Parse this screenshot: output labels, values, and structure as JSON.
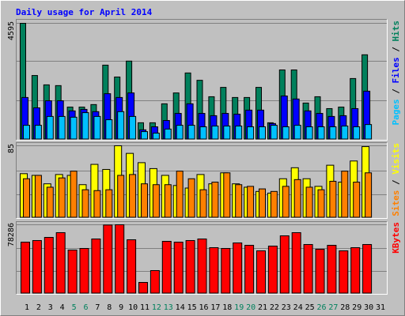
{
  "title": "Daily usage for April 2014",
  "chart_data": [
    {
      "type": "bar",
      "ylim": [
        0,
        4595
      ],
      "yticks": [
        4595
      ],
      "legend_separator": " / ",
      "series": [
        {
          "name": "Pages",
          "color": "#00c0ff",
          "values": [
            560,
            560,
            910,
            910,
            880,
            1060,
            910,
            780,
            1100,
            910,
            310,
            250,
            410,
            560,
            560,
            500,
            530,
            530,
            530,
            500,
            500,
            560,
            500,
            560,
            500,
            500,
            500,
            530,
            500,
            590,
            null
          ]
        },
        {
          "name": "Files",
          "color": "#0000ff",
          "values": [
            1660,
            1250,
            1530,
            1530,
            1130,
            1190,
            1100,
            1810,
            1660,
            1840,
            380,
            500,
            750,
            1030,
            1410,
            1030,
            940,
            1030,
            1000,
            1160,
            1160,
            630,
            1720,
            1600,
            1130,
            1030,
            910,
            940,
            1220,
            1910,
            null
          ]
        },
        {
          "name": "Hits",
          "color": "#00805c",
          "values": [
            4595,
            2530,
            2160,
            2130,
            1280,
            1280,
            1380,
            2940,
            2470,
            3100,
            660,
            660,
            1410,
            1840,
            2630,
            2340,
            1690,
            2060,
            1660,
            1660,
            2060,
            660,
            2750,
            2750,
            1440,
            1690,
            1220,
            1280,
            2410,
            3350,
            null
          ]
        }
      ]
    },
    {
      "type": "bar",
      "ylim": [
        0,
        85
      ],
      "yticks": [
        85
      ],
      "legend_separator": " / ",
      "series": [
        {
          "name": "Sites",
          "color": "#ff8000",
          "values": [
            46,
            50,
            36,
            47,
            55,
            33,
            32,
            33,
            50,
            51,
            40,
            39,
            39,
            55,
            46,
            33,
            42,
            53,
            39,
            37,
            34,
            31,
            37,
            45,
            36,
            33,
            43,
            55,
            42,
            53,
            null
          ]
        },
        {
          "name": "Visits",
          "color": "#ffff00",
          "values": [
            52,
            50,
            40,
            51,
            50,
            39,
            63,
            57,
            85,
            76,
            65,
            58,
            50,
            38,
            35,
            51,
            40,
            53,
            40,
            36,
            31,
            29,
            46,
            59,
            46,
            37,
            62,
            42,
            67,
            84,
            null
          ]
        }
      ]
    },
    {
      "type": "bar",
      "ylim": [
        0,
        78286
      ],
      "yticks": [
        78286
      ],
      "legend_separator": " / ",
      "categories": [
        "1",
        "2",
        "3",
        "4",
        "5",
        "6",
        "7",
        "8",
        "9",
        "10",
        "11",
        "12",
        "13",
        "14",
        "15",
        "16",
        "17",
        "18",
        "19",
        "20",
        "21",
        "22",
        "23",
        "24",
        "25",
        "26",
        "27",
        "28",
        "29",
        "30",
        "31"
      ],
      "category_colors": [
        "#000000",
        "#000000",
        "#000000",
        "#000000",
        "#00805c",
        "#00805c",
        "#000000",
        "#000000",
        "#000000",
        "#000000",
        "#000000",
        "#00805c",
        "#00805c",
        "#000000",
        "#000000",
        "#000000",
        "#000000",
        "#000000",
        "#00805c",
        "#00805c",
        "#000000",
        "#000000",
        "#000000",
        "#000000",
        "#000000",
        "#00805c",
        "#00805c",
        "#000000",
        "#000000",
        "#000000",
        "#000000"
      ],
      "series": [
        {
          "name": "KBytes",
          "color": "#ff0000",
          "values": [
            58500,
            60300,
            63900,
            69300,
            49500,
            51300,
            62100,
            78000,
            78286,
            61200,
            12600,
            26100,
            59400,
            58500,
            60300,
            62100,
            52200,
            51300,
            57600,
            54900,
            48600,
            54000,
            65700,
            69300,
            55800,
            50400,
            54900,
            48600,
            52200,
            55800,
            null
          ]
        }
      ]
    }
  ]
}
